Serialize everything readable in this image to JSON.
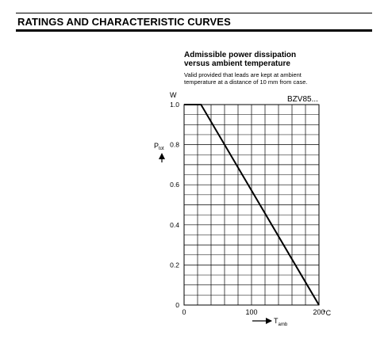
{
  "section": {
    "title": "RATINGS AND CHARACTERISTIC CURVES"
  },
  "chart_data": {
    "type": "line",
    "title_lines": [
      "Admissible power dissipation",
      "versus ambient temperature"
    ],
    "subtitle_lines": [
      "Valid provided that leads are kept at ambient",
      "temperature at a distance of 10 mm from case."
    ],
    "part_label": "BZV85...",
    "y_unit": "W",
    "ylabel": "P",
    "ylabel_sub": "tot",
    "xlabel": "T",
    "xlabel_sub": "amb",
    "x_unit": "°C",
    "xlim": [
      0,
      200
    ],
    "ylim": [
      0,
      1.0
    ],
    "x_tick_labels": [
      "0",
      "100",
      "200"
    ],
    "y_tick_labels": [
      "0",
      "0.2",
      "0.4",
      "0.6",
      "0.8",
      "1.0"
    ],
    "grid": true,
    "series": [
      {
        "x": [
          0,
          25,
          200
        ],
        "y": [
          1.0,
          1.0,
          0
        ]
      }
    ]
  }
}
